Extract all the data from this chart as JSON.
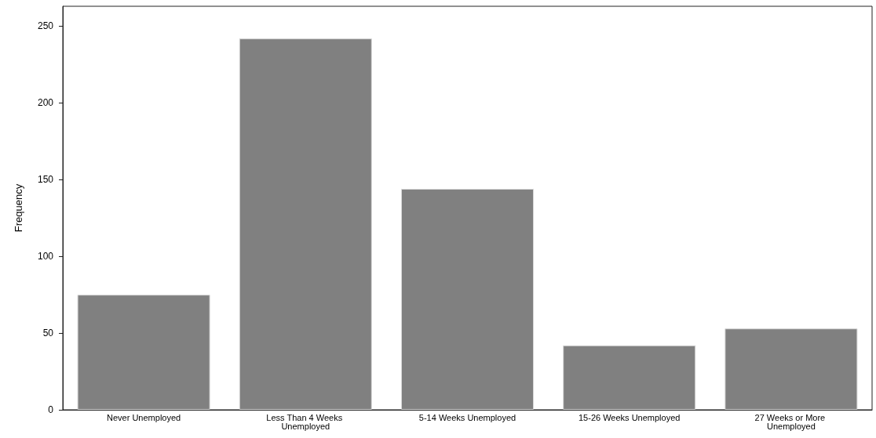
{
  "chart_data": {
    "type": "bar",
    "ylabel": "Frequency",
    "categories": [
      "Never Unemployed",
      "Less Than 4 Weeks Unemployed",
      "5-14 Weeks Unemployed",
      "15-26 Weeks Unemployed",
      "27 Weeks or More Unemployed"
    ],
    "values": [
      75,
      242,
      144,
      42,
      53
    ],
    "color": "#808080",
    "ylim": [
      0,
      263
    ],
    "yticks": [
      0,
      50,
      100,
      150,
      200,
      250
    ],
    "grid": false
  }
}
